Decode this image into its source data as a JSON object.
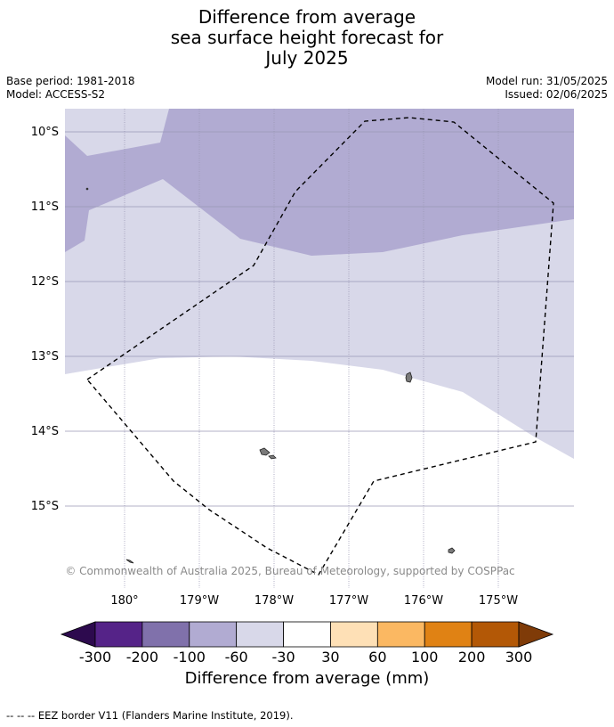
{
  "title": {
    "line1": "Difference from average",
    "line2": "sea surface height forecast for",
    "line3": "July 2025"
  },
  "meta": {
    "base_period": "Base period: 1981-2018",
    "model": "Model: ACCESS-S2",
    "model_run": "Model run: 31/05/2025",
    "issued": "Issued: 02/06/2025"
  },
  "map": {
    "lat_labels": [
      "10°S",
      "11°S",
      "12°S",
      "13°S",
      "14°S",
      "15°S"
    ],
    "lon_labels": [
      "180°",
      "179°W",
      "178°W",
      "177°W",
      "176°W",
      "175°W"
    ],
    "copyright": "© Commonwealth of Australia 2025, Bureau of Meteorology, supported by COSPPac",
    "colors": {
      "band_-100_-60": "#b1abd2",
      "band_-60_-30": "#d8d8e9",
      "band_-30_30": "#ffffff"
    }
  },
  "legend": {
    "ticks": [
      "-300",
      "-200",
      "-100",
      "-60",
      "-30",
      "30",
      "60",
      "100",
      "200",
      "300"
    ],
    "colors": [
      "#2d0a4e",
      "#552388",
      "#8071ab",
      "#b1abd2",
      "#d8d8e9",
      "#ffffff",
      "#fee0b6",
      "#fbb862",
      "#e08214",
      "#b35806",
      "#7f3b08"
    ],
    "title": "Difference from average (mm)"
  },
  "footer": "--  --  -- EEZ border V11 (Flanders Marine Institute, 2019)."
}
